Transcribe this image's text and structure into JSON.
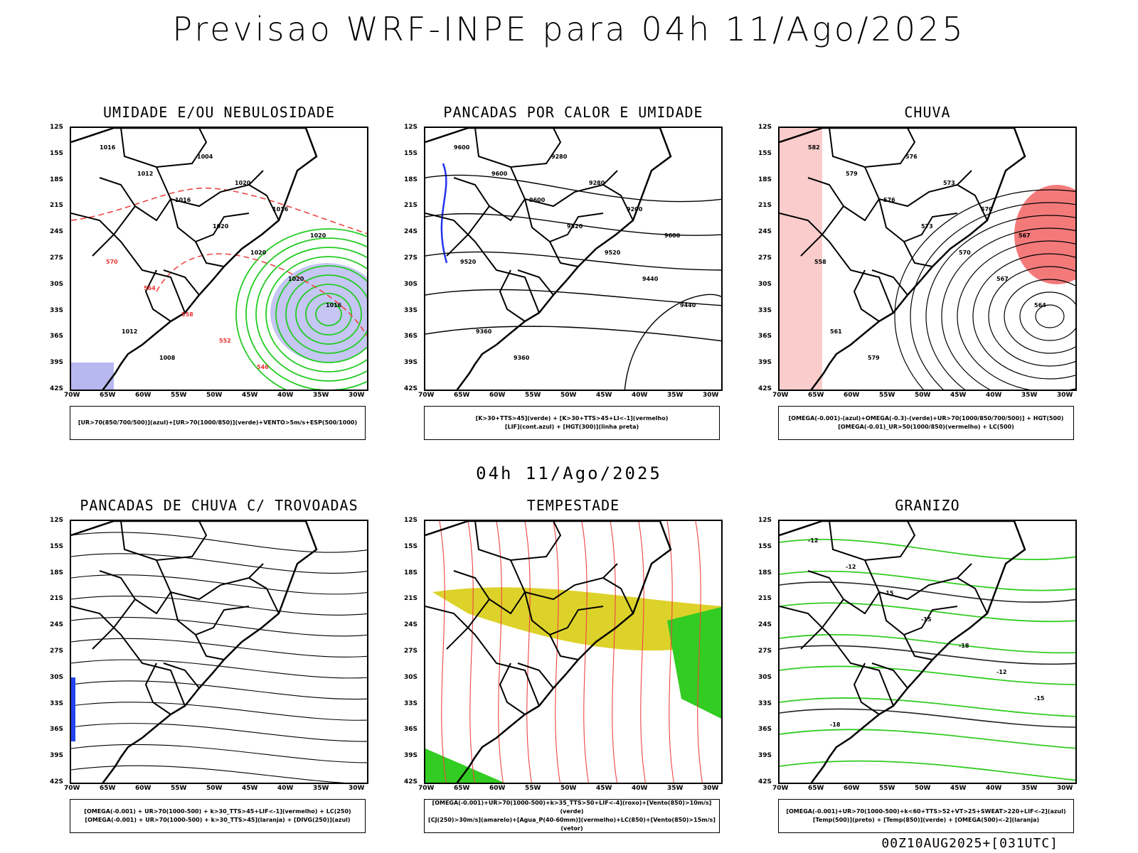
{
  "title": "Previsao WRF-INPE  para 04h 11/Ago/2025",
  "mid_date": "04h 11/Ago/2025",
  "footer": "00Z10AUG2025+[031UTC]",
  "lat_ticks": [
    "12S",
    "15S",
    "18S",
    "21S",
    "24S",
    "27S",
    "30S",
    "33S",
    "36S",
    "39S",
    "42S"
  ],
  "lon_ticks": [
    "70W",
    "65W",
    "60W",
    "55W",
    "50W",
    "45W",
    "40W",
    "35W",
    "30W"
  ],
  "panels": [
    {
      "title": "UMIDADE E/OU NEBULOSIDADE",
      "legend": [
        "[UR>70(850/700/500)](azul)+[UR>70(1000/850)](verde)+VENTO>5m/s+ESP(500/1000)"
      ],
      "labels": [
        "1016",
        "1012",
        "1016",
        "1020",
        "1020",
        "1020",
        "1016",
        "1012",
        "1008",
        "1004",
        "1020",
        "1016",
        "1020",
        "570",
        "564",
        "558",
        "552",
        "546"
      ]
    },
    {
      "title": "PANCADAS POR CALOR E UMIDADE",
      "legend": [
        "[K>30+TTS>45](verde)  +  [K>30+TTS>45+LI<-1](vermelho)",
        "[LIF](cont.azul)  +  [HGT(300)](linha preta)"
      ],
      "labels": [
        "9600",
        "9600",
        "9600",
        "9520",
        "9520",
        "9440",
        "9440",
        "9360",
        "9360",
        "9280",
        "9280",
        "9200",
        "9600",
        "9520"
      ]
    },
    {
      "title": "CHUVA",
      "legend": [
        "[OMEGA(-0.001)-(azul)+OMEGA(-0.3)-(verde)+UR>70(1000/850/700/500)]  +  HGT(500)",
        "[OMEGA(-0.01)_UR>50(1000/850)(vermelho)  +  LC(500)"
      ],
      "labels": [
        "582",
        "579",
        "576",
        "573",
        "570",
        "567",
        "564",
        "561",
        "579",
        "576",
        "573",
        "570",
        "567",
        "558"
      ]
    },
    {
      "title": "PANCADAS DE CHUVA C/ TROVOADAS",
      "legend": [
        "[OMEGA(-0.001) + UR>70(1000-500) + k>30_TTS>45+LIF<-1](vermelho) + LC(250)",
        "[OMEGA(-0.001) + UR>70(1000-500) + k>30_TTS>45](laranja) + [DIVG(250)](azul)"
      ],
      "labels": []
    },
    {
      "title": "TEMPESTADE",
      "legend": [
        "[OMEGA(-0.001)+UR>70(1000-500)+k>35_TTS>50+LIF<-4](roxo)+[Vento(850)>10m/s](verde)",
        "[CJ(250)>30m/s](amarelo)+[Agua_P(40-60mm)](vermelho)+LC(850)+[Vento(850)>15m/s](vetor)"
      ],
      "labels": []
    },
    {
      "title": "GRANIZO",
      "legend": [
        "[OMEGA(-0.001)+UR>70(1000-500)+k<60+TTS>52+VT>25+SWEAT>220+LIF<-2](azul)",
        "[Temp(500)](preto)  +  [Temp(850)](verde)  +  [OMEGA(500)<-2](laranja)"
      ],
      "labels": [
        "-12",
        "-12",
        "-15",
        "-15",
        "-18",
        "-12",
        "-15",
        "-18"
      ]
    }
  ]
}
